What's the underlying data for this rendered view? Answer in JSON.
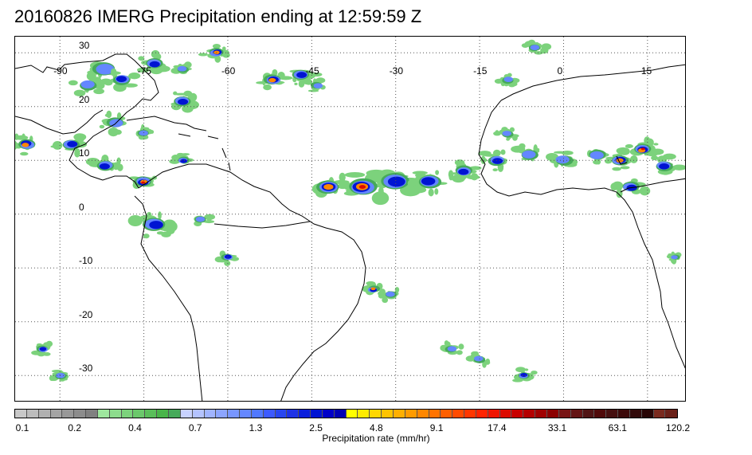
{
  "title": "20160826 IMERG Precipitation ending at 12:59:59 Z",
  "map": {
    "lon_range": [
      -98,
      22
    ],
    "lat_range": [
      -35,
      33
    ],
    "lon_ticks": [
      -90,
      -75,
      -60,
      -45,
      -30,
      -15,
      0,
      15
    ],
    "lat_ticks": [
      30,
      20,
      10,
      0,
      -10,
      -20,
      -30
    ],
    "lon_labels": [
      "-90",
      "-75",
      "-60",
      "-45",
      "-30",
      "-15",
      "0",
      "15"
    ],
    "lat_labels": [
      "30",
      "20",
      "10",
      "0",
      "-10",
      "-20",
      "-30"
    ],
    "grid": "dotted",
    "coast_color": "#000000"
  },
  "colorbar": {
    "label": "Precipitation rate (mm/hr)",
    "tick_labels": [
      "0.1",
      "0.2",
      "0.4",
      "0.7",
      "1.3",
      "2.5",
      "4.8",
      "9.1",
      "17.4",
      "33.1",
      "63.1",
      "120.2"
    ],
    "colors": [
      "#c8c8c8",
      "#bcbcbc",
      "#b0b0b0",
      "#a4a4a4",
      "#989898",
      "#8c8c8c",
      "#808080",
      "#9ee69e",
      "#8ddc8d",
      "#7cd27c",
      "#6bc86b",
      "#5abe5a",
      "#49b449",
      "#46aa5a",
      "#c8d2ff",
      "#b4c3ff",
      "#a0b4ff",
      "#8ca5ff",
      "#7896ff",
      "#6487ff",
      "#5078ff",
      "#3c5aff",
      "#2846f0",
      "#1e32e6",
      "#0a1edc",
      "#0014d2",
      "#0000c8",
      "#0000b4",
      "#ffff00",
      "#ffeb00",
      "#ffd700",
      "#ffc300",
      "#ffaf00",
      "#ff9b00",
      "#ff8700",
      "#ff7300",
      "#ff5f00",
      "#ff4b00",
      "#ff3700",
      "#ff2300",
      "#f01400",
      "#dc0a00",
      "#c80000",
      "#b40000",
      "#a00000",
      "#8c0000",
      "#781414",
      "#641414",
      "#501414",
      "#500a0a",
      "#461010",
      "#3c0a0a",
      "#320a0a",
      "#280505",
      "#7a2a1e",
      "#6a2018"
    ]
  },
  "precip_cells": [
    {
      "lon": -82,
      "lat": 27,
      "r": 4,
      "level": 2
    },
    {
      "lon": -79,
      "lat": 25,
      "r": 3,
      "level": 3
    },
    {
      "lon": -85,
      "lat": 24,
      "r": 3,
      "level": 2
    },
    {
      "lon": -62,
      "lat": 30,
      "r": 2.5,
      "level": 4
    },
    {
      "lon": -73,
      "lat": 28,
      "r": 3,
      "level": 3
    },
    {
      "lon": -68,
      "lat": 27,
      "r": 2,
      "level": 2
    },
    {
      "lon": -52,
      "lat": 25,
      "r": 3,
      "level": 4
    },
    {
      "lon": -47,
      "lat": 26,
      "r": 3,
      "level": 3
    },
    {
      "lon": -44,
      "lat": 24,
      "r": 2,
      "level": 2
    },
    {
      "lon": -68,
      "lat": 21,
      "r": 3,
      "level": 3
    },
    {
      "lon": -80,
      "lat": 17,
      "r": 3,
      "level": 2
    },
    {
      "lon": -75,
      "lat": 15,
      "r": 2,
      "level": 2
    },
    {
      "lon": -96,
      "lat": 13,
      "r": 3,
      "level": 4
    },
    {
      "lon": -88,
      "lat": 13,
      "r": 3,
      "level": 3
    },
    {
      "lon": -82,
      "lat": 9,
      "r": 3,
      "level": 3
    },
    {
      "lon": -75,
      "lat": 6,
      "r": 3,
      "level": 5
    },
    {
      "lon": -68,
      "lat": 10,
      "r": 2,
      "level": 3
    },
    {
      "lon": -73,
      "lat": -2,
      "r": 4,
      "level": 3
    },
    {
      "lon": -65,
      "lat": -1,
      "r": 2,
      "level": 2
    },
    {
      "lon": -60,
      "lat": -8,
      "r": 2,
      "level": 3
    },
    {
      "lon": -42,
      "lat": 5,
      "r": 4,
      "level": 4
    },
    {
      "lon": -36,
      "lat": 5,
      "r": 5,
      "level": 5
    },
    {
      "lon": -30,
      "lat": 6,
      "r": 5,
      "level": 3
    },
    {
      "lon": -24,
      "lat": 6,
      "r": 4,
      "level": 3
    },
    {
      "lon": -18,
      "lat": 8,
      "r": 3,
      "level": 3
    },
    {
      "lon": -12,
      "lat": 10,
      "r": 3,
      "level": 3
    },
    {
      "lon": -6,
      "lat": 11,
      "r": 3,
      "level": 2
    },
    {
      "lon": 0,
      "lat": 10,
      "r": 3,
      "level": 2
    },
    {
      "lon": 6,
      "lat": 11,
      "r": 3,
      "level": 2
    },
    {
      "lon": 10,
      "lat": 10,
      "r": 3,
      "level": 4
    },
    {
      "lon": 14,
      "lat": 12,
      "r": 3,
      "level": 5
    },
    {
      "lon": 18,
      "lat": 9,
      "r": 3,
      "level": 3
    },
    {
      "lon": 12,
      "lat": 5,
      "r": 3,
      "level": 3
    },
    {
      "lon": -10,
      "lat": 15,
      "r": 2,
      "level": 2
    },
    {
      "lon": -34,
      "lat": -14,
      "r": 2,
      "level": 4
    },
    {
      "lon": -31,
      "lat": -15,
      "r": 2,
      "level": 2
    },
    {
      "lon": -20,
      "lat": -25,
      "r": 2,
      "level": 2
    },
    {
      "lon": -15,
      "lat": -27,
      "r": 2,
      "level": 2
    },
    {
      "lon": -7,
      "lat": -30,
      "r": 2,
      "level": 3
    },
    {
      "lon": -93,
      "lat": -25,
      "r": 2,
      "level": 3
    },
    {
      "lon": -90,
      "lat": -30,
      "r": 2,
      "level": 2
    },
    {
      "lon": -10,
      "lat": 25,
      "r": 2,
      "level": 2
    },
    {
      "lon": -5,
      "lat": 31,
      "r": 2,
      "level": 2
    },
    {
      "lon": 20,
      "lat": -8,
      "r": 1.5,
      "level": 2
    }
  ]
}
